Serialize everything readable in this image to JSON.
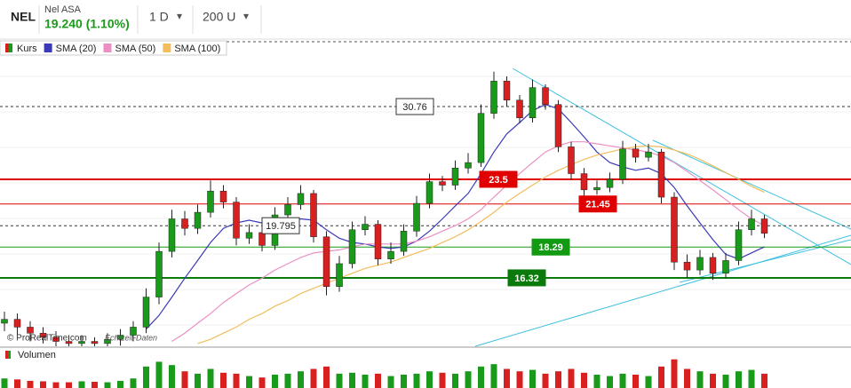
{
  "header": {
    "symbol": "NEL",
    "name": "Nel ASA",
    "quote": "19.240 (1.10%)",
    "interval": "1 D",
    "units": "200 U",
    "dropdown": "▾"
  },
  "watermark": {
    "source": "© ProRealTime.com",
    "note": "Echtzeit-Daten"
  },
  "chart_data": {
    "type": "candlestick",
    "log_scale": true,
    "ylim": [
      12.67,
      39.1
    ],
    "candles": {
      "name": "Kurs",
      "up_color": "#1a9a1a",
      "down_color": "#d82020",
      "open": [
        13.8,
        14.0,
        13.6,
        13.3,
        13.1,
        12.9,
        12.8,
        12.9,
        12.8,
        13.0,
        13.2,
        13.6,
        15.2,
        18.0,
        20.3,
        19.6,
        20.8,
        22.5,
        21.6,
        18.9,
        19.3,
        18.4,
        20.6,
        21.4,
        22.3,
        19.0,
        15.8,
        17.2,
        19.5,
        19.9,
        17.5,
        18.0,
        19.4,
        21.5,
        23.3,
        23.0,
        24.5,
        25.0,
        30.0,
        33.8,
        31.5,
        29.5,
        33.0,
        31.0,
        26.5,
        24.0,
        22.6,
        22.8,
        23.5,
        26.3,
        25.5,
        26.0,
        22.0,
        17.3,
        16.8,
        17.6,
        16.6,
        17.4,
        19.5,
        20.3
      ],
      "high": [
        14.4,
        14.3,
        13.9,
        13.6,
        13.4,
        13.2,
        13.2,
        13.1,
        13.3,
        13.5,
        13.9,
        15.7,
        18.6,
        21.0,
        20.9,
        21.4,
        23.4,
        23.0,
        22.0,
        19.9,
        19.8,
        21.2,
        22.0,
        23.0,
        22.6,
        19.4,
        17.7,
        20.1,
        20.5,
        20.2,
        18.6,
        19.9,
        22.1,
        24.0,
        23.8,
        25.2,
        25.9,
        31.0,
        35.0,
        34.4,
        32.1,
        34.0,
        33.4,
        31.5,
        27.0,
        24.5,
        23.4,
        24.1,
        27.1,
        26.8,
        26.8,
        26.3,
        22.4,
        17.8,
        18.1,
        17.9,
        17.9,
        20.1,
        21.0,
        20.6
      ],
      "low": [
        13.4,
        13.2,
        12.9,
        12.8,
        12.6,
        12.5,
        12.5,
        12.5,
        12.5,
        12.7,
        12.9,
        13.3,
        14.8,
        17.6,
        19.1,
        19.2,
        20.4,
        21.1,
        18.4,
        18.5,
        18.0,
        18.1,
        20.2,
        21.0,
        18.6,
        15.3,
        15.5,
        16.9,
        19.1,
        17.1,
        17.2,
        17.7,
        19.0,
        21.1,
        22.5,
        22.6,
        24.0,
        24.6,
        29.4,
        30.8,
        28.9,
        29.0,
        30.4,
        26.0,
        23.5,
        22.1,
        22.2,
        22.4,
        23.1,
        25.0,
        25.1,
        21.5,
        16.8,
        16.3,
        16.5,
        16.2,
        16.3,
        17.1,
        19.1,
        18.9
      ],
      "close": [
        14.0,
        13.6,
        13.3,
        13.1,
        12.9,
        12.8,
        12.9,
        12.8,
        13.0,
        13.2,
        13.6,
        15.2,
        18.0,
        20.3,
        19.6,
        20.8,
        22.5,
        21.6,
        18.9,
        19.3,
        18.4,
        20.6,
        21.4,
        22.3,
        19.0,
        15.8,
        17.2,
        19.5,
        19.9,
        17.5,
        18.0,
        19.4,
        21.5,
        23.3,
        23.0,
        24.5,
        25.0,
        30.0,
        33.8,
        31.5,
        29.5,
        33.0,
        31.0,
        26.5,
        24.0,
        22.6,
        22.8,
        23.5,
        26.3,
        25.5,
        26.0,
        22.0,
        17.3,
        16.8,
        17.6,
        16.6,
        17.4,
        19.5,
        20.3,
        19.24
      ]
    },
    "series": [
      {
        "name": "SMA (20)",
        "color": "#3a3ab8",
        "values": [
          null,
          null,
          null,
          null,
          null,
          null,
          null,
          null,
          null,
          null,
          null,
          13.5,
          14.2,
          15.2,
          16.3,
          17.4,
          18.6,
          19.6,
          20.0,
          20.2,
          20.0,
          19.9,
          20.0,
          20.3,
          20.2,
          19.5,
          18.9,
          18.6,
          18.5,
          18.3,
          18.2,
          18.3,
          18.7,
          19.4,
          20.3,
          21.3,
          22.3,
          24.0,
          26.0,
          27.8,
          29.0,
          30.3,
          31.0,
          30.5,
          29.0,
          27.5,
          26.0,
          25.0,
          24.6,
          24.3,
          24.5,
          24.0,
          22.8,
          21.3,
          20.0,
          18.8,
          17.8,
          17.5,
          17.9,
          18.3
        ]
      },
      {
        "name": "SMA (50)",
        "color": "#ec8fc4",
        "values": [
          null,
          null,
          null,
          null,
          null,
          null,
          null,
          null,
          null,
          null,
          null,
          null,
          null,
          12.9,
          13.3,
          13.8,
          14.3,
          14.9,
          15.4,
          15.9,
          16.3,
          16.8,
          17.2,
          17.6,
          17.9,
          18.0,
          18.1,
          18.3,
          18.5,
          18.5,
          18.5,
          18.5,
          18.7,
          19.0,
          19.4,
          19.8,
          20.3,
          21.0,
          22.0,
          23.0,
          24.0,
          25.0,
          26.0,
          26.6,
          27.0,
          27.0,
          26.8,
          26.6,
          26.4,
          26.2,
          26.0,
          25.6,
          25.0,
          24.2,
          23.4,
          22.6,
          21.8,
          21.0,
          20.3,
          19.8
        ]
      },
      {
        "name": "SMA (100)",
        "color": "#f2bd5c",
        "values": [
          null,
          null,
          null,
          null,
          null,
          null,
          null,
          null,
          null,
          null,
          null,
          null,
          null,
          null,
          null,
          12.8,
          13.0,
          13.3,
          13.6,
          14.0,
          14.3,
          14.7,
          15.0,
          15.4,
          15.7,
          16.0,
          16.3,
          16.6,
          16.9,
          17.1,
          17.3,
          17.6,
          17.9,
          18.2,
          18.6,
          19.0,
          19.5,
          20.1,
          20.8,
          21.6,
          22.3,
          23.0,
          23.7,
          24.3,
          24.8,
          25.3,
          25.7,
          26.0,
          26.3,
          26.5,
          26.6,
          26.5,
          26.2,
          25.8,
          25.3,
          24.7,
          24.1,
          23.5,
          22.9,
          22.4
        ]
      }
    ],
    "levels": [
      {
        "value": 30.76,
        "color": "#333333",
        "dashed": true
      },
      {
        "value": 23.5,
        "color": "#e00000",
        "dashed": false
      },
      {
        "value": 21.45,
        "color": "#e00000",
        "dashed": false
      },
      {
        "value": 19.795,
        "color": "#333333",
        "dashed": true
      },
      {
        "value": 18.29,
        "color": "#139a13",
        "dashed": false
      },
      {
        "value": 16.32,
        "color": "#0a7a0a",
        "dashed": false
      }
    ],
    "volume": {
      "name": "Volumen",
      "ylim": [
        0,
        80
      ],
      "values": [
        20,
        18,
        15,
        14,
        12,
        12,
        14,
        13,
        12,
        15,
        20,
        45,
        55,
        48,
        35,
        30,
        40,
        32,
        30,
        25,
        22,
        28,
        30,
        35,
        40,
        45,
        30,
        32,
        28,
        30,
        25,
        28,
        30,
        35,
        32,
        30,
        35,
        45,
        50,
        40,
        35,
        38,
        30,
        35,
        40,
        32,
        28,
        25,
        30,
        28,
        25,
        45,
        60,
        40,
        35,
        30,
        28,
        35,
        38,
        30
      ]
    }
  }
}
